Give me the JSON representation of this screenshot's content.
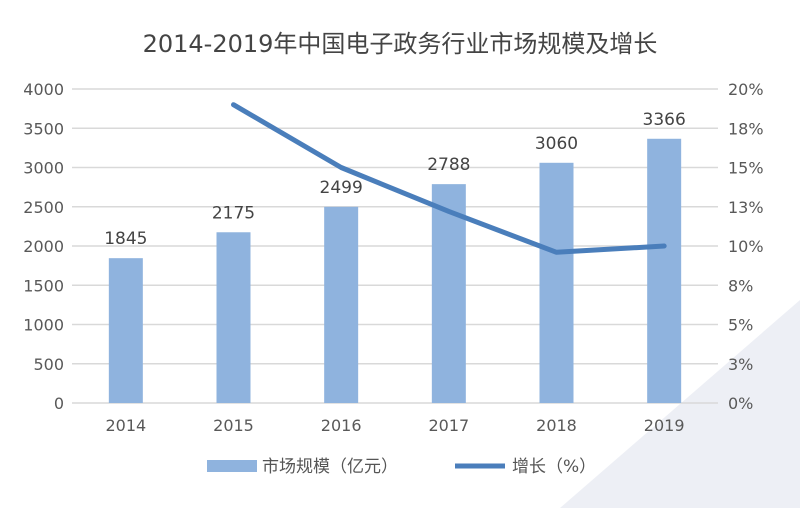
{
  "chart_data": {
    "type": "bar+line",
    "title": "2014-2019年中国电子政务行业市场规模及增长",
    "categories": [
      "2014",
      "2015",
      "2016",
      "2017",
      "2018",
      "2019"
    ],
    "series": [
      {
        "name": "市场规模（亿元）",
        "type": "bar",
        "axis": "left",
        "color": "#8FB3DE",
        "values": [
          1845,
          2175,
          2499,
          2788,
          3060,
          3366
        ],
        "labels": [
          "1845",
          "2175",
          "2499",
          "2788",
          "3060",
          "3366"
        ]
      },
      {
        "name": "增长（%）",
        "type": "line",
        "axis": "right",
        "color": "#4A7EBB",
        "values": [
          null,
          19.0,
          15.0,
          12.2,
          9.6,
          10.0
        ]
      }
    ],
    "left_axis": {
      "ylim": [
        0,
        4000
      ],
      "ticks": [
        "0",
        "500",
        "1000",
        "1500",
        "2000",
        "2500",
        "3000",
        "3500",
        "4000"
      ]
    },
    "right_axis": {
      "ylim": [
        0,
        20
      ],
      "ticks": [
        "0%",
        "3%",
        "5%",
        "8%",
        "10%",
        "13%",
        "15%",
        "18%",
        "20%"
      ]
    },
    "grid": true,
    "legend": "bottom"
  }
}
